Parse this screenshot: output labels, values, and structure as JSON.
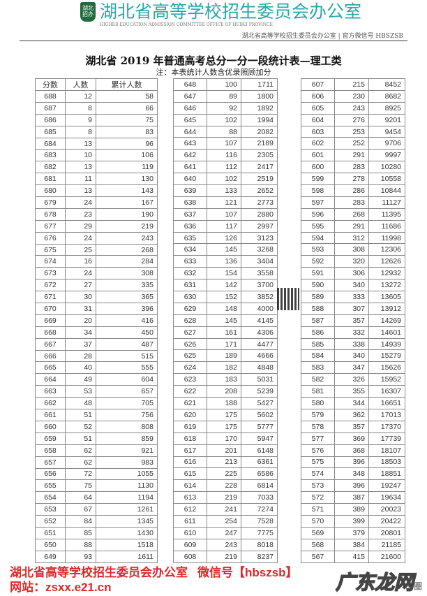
{
  "header": {
    "org_text": "湖北省高等学校招生委员会办公室 | 官方微信号 HBSZSB"
  },
  "title": "湖北省 2019 年普通高考总分一分一段统计表—理工类",
  "note": "注：本表统计人数含优录照顾加分",
  "columns": [
    "分数",
    "人数",
    "累计人数"
  ],
  "tables": [
    [
      [
        688,
        12,
        58
      ],
      [
        687,
        8,
        66
      ],
      [
        686,
        9,
        75
      ],
      [
        685,
        8,
        83
      ],
      [
        684,
        13,
        96
      ],
      [
        683,
        10,
        106
      ],
      [
        682,
        13,
        119
      ],
      [
        681,
        11,
        130
      ],
      [
        680,
        13,
        143
      ],
      [
        679,
        24,
        167
      ],
      [
        678,
        23,
        190
      ],
      [
        677,
        29,
        219
      ],
      [
        676,
        24,
        243
      ],
      [
        675,
        25,
        268
      ],
      [
        674,
        16,
        284
      ],
      [
        673,
        24,
        308
      ],
      [
        672,
        27,
        335
      ],
      [
        671,
        30,
        365
      ],
      [
        670,
        31,
        396
      ],
      [
        669,
        20,
        416
      ],
      [
        668,
        34,
        450
      ],
      [
        667,
        37,
        487
      ],
      [
        666,
        28,
        515
      ],
      [
        665,
        40,
        555
      ],
      [
        664,
        49,
        604
      ],
      [
        663,
        53,
        657
      ],
      [
        662,
        48,
        705
      ],
      [
        661,
        51,
        756
      ],
      [
        660,
        52,
        808
      ],
      [
        659,
        51,
        859
      ],
      [
        658,
        62,
        921
      ],
      [
        657,
        62,
        983
      ],
      [
        656,
        72,
        1055
      ],
      [
        655,
        75,
        1130
      ],
      [
        654,
        64,
        1194
      ],
      [
        653,
        67,
        1261
      ],
      [
        652,
        84,
        1345
      ],
      [
        651,
        85,
        1430
      ],
      [
        650,
        88,
        1518
      ],
      [
        649,
        93,
        1611
      ]
    ],
    [
      [
        648,
        100,
        1711
      ],
      [
        647,
        89,
        1800
      ],
      [
        646,
        92,
        1892
      ],
      [
        645,
        102,
        1994
      ],
      [
        644,
        88,
        2082
      ],
      [
        643,
        107,
        2189
      ],
      [
        642,
        116,
        2305
      ],
      [
        641,
        112,
        2417
      ],
      [
        640,
        102,
        2519
      ],
      [
        639,
        133,
        2652
      ],
      [
        638,
        121,
        2773
      ],
      [
        637,
        107,
        2880
      ],
      [
        636,
        117,
        2997
      ],
      [
        635,
        126,
        3123
      ],
      [
        634,
        145,
        3268
      ],
      [
        633,
        136,
        3404
      ],
      [
        632,
        154,
        3558
      ],
      [
        631,
        142,
        3700
      ],
      [
        630,
        152,
        3852
      ],
      [
        629,
        148,
        4000
      ],
      [
        628,
        145,
        4145
      ],
      [
        627,
        161,
        4306
      ],
      [
        626,
        171,
        4477
      ],
      [
        625,
        189,
        4666
      ],
      [
        624,
        182,
        4848
      ],
      [
        623,
        183,
        5031
      ],
      [
        622,
        208,
        5239
      ],
      [
        621,
        188,
        5427
      ],
      [
        620,
        175,
        5602
      ],
      [
        619,
        175,
        5777
      ],
      [
        618,
        170,
        5947
      ],
      [
        617,
        201,
        6148
      ],
      [
        616,
        213,
        6361
      ],
      [
        615,
        225,
        6586
      ],
      [
        614,
        228,
        6814
      ],
      [
        613,
        219,
        7033
      ],
      [
        612,
        241,
        7274
      ],
      [
        611,
        254,
        7528
      ],
      [
        610,
        247,
        7775
      ],
      [
        609,
        243,
        8018
      ],
      [
        608,
        219,
        8237
      ]
    ],
    [
      [
        607,
        215,
        8452
      ],
      [
        606,
        230,
        8682
      ],
      [
        605,
        243,
        8925
      ],
      [
        604,
        276,
        9201
      ],
      [
        603,
        253,
        9454
      ],
      [
        602,
        252,
        9706
      ],
      [
        601,
        291,
        9997
      ],
      [
        600,
        283,
        10280
      ],
      [
        599,
        278,
        10558
      ],
      [
        598,
        286,
        10844
      ],
      [
        597,
        283,
        11127
      ],
      [
        596,
        268,
        11395
      ],
      [
        595,
        291,
        11686
      ],
      [
        594,
        312,
        11998
      ],
      [
        593,
        308,
        12306
      ],
      [
        592,
        320,
        12626
      ],
      [
        591,
        306,
        12932
      ],
      [
        590,
        340,
        13272
      ],
      [
        589,
        333,
        13605
      ],
      [
        588,
        307,
        13912
      ],
      [
        587,
        357,
        14269
      ],
      [
        586,
        332,
        14601
      ],
      [
        585,
        338,
        14939
      ],
      [
        584,
        340,
        15279
      ],
      [
        583,
        347,
        15626
      ],
      [
        582,
        326,
        15952
      ],
      [
        581,
        355,
        16307
      ],
      [
        580,
        344,
        16651
      ],
      [
        579,
        362,
        17013
      ],
      [
        578,
        357,
        17370
      ],
      [
        577,
        369,
        17739
      ],
      [
        576,
        368,
        18107
      ],
      [
        575,
        396,
        18503
      ],
      [
        574,
        348,
        18851
      ],
      [
        573,
        396,
        19247
      ],
      [
        572,
        387,
        19634
      ],
      [
        571,
        389,
        20023
      ],
      [
        570,
        399,
        20422
      ],
      [
        569,
        379,
        20801
      ],
      [
        568,
        384,
        21185
      ],
      [
        567,
        415,
        21600
      ]
    ]
  ],
  "watermark": {
    "line1": "湖北省高等学校招生委员会办公室",
    "line2": "微信号【hbszsb】",
    "line3": "网站：zsxx.e21.cn"
  },
  "logo": {
    "cn": "湖北省高等学校招生委员会办公室",
    "en": "HIGHER EDUCATION ADMISSION COMMITTEE OFFICE OF HUBEI PROVINCE",
    "emblem": "湖北招办"
  },
  "site_mark": {
    "name": "广东龙网",
    "suffix": "圈"
  }
}
